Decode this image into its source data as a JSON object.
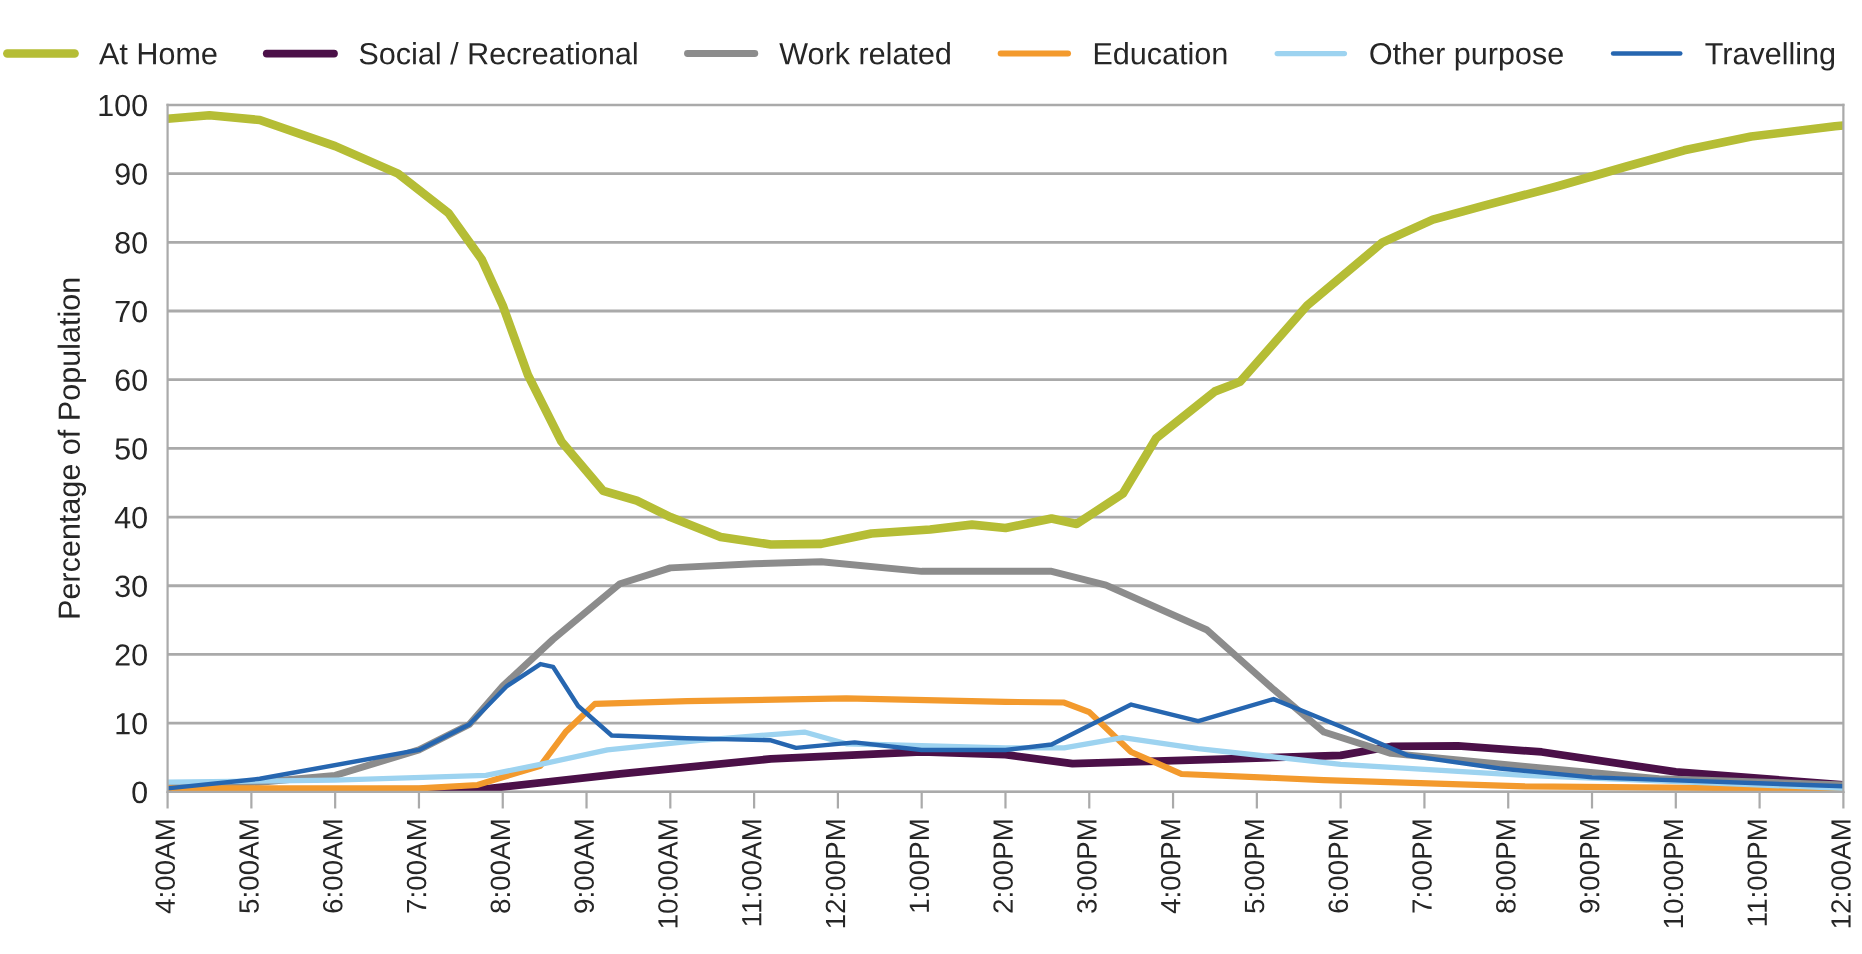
{
  "chart_data": {
    "type": "line",
    "ylabel": "Percentage of Population",
    "xlim": [
      4,
      24
    ],
    "xticks": [
      {
        "value": 4,
        "label": "4:00AM"
      },
      {
        "value": 5,
        "label": "5:00AM"
      },
      {
        "value": 6,
        "label": "6:00AM"
      },
      {
        "value": 7,
        "label": "7:00AM"
      },
      {
        "value": 8,
        "label": "8:00AM"
      },
      {
        "value": 9,
        "label": "9:00AM"
      },
      {
        "value": 10,
        "label": "10:00AM"
      },
      {
        "value": 11,
        "label": "11:00AM"
      },
      {
        "value": 12,
        "label": "12:00PM"
      },
      {
        "value": 13,
        "label": "1:00PM"
      },
      {
        "value": 14,
        "label": "2:00PM"
      },
      {
        "value": 15,
        "label": "3:00PM"
      },
      {
        "value": 16,
        "label": "4:00PM"
      },
      {
        "value": 17,
        "label": "5:00PM"
      },
      {
        "value": 18,
        "label": "6:00PM"
      },
      {
        "value": 19,
        "label": "7:00PM"
      },
      {
        "value": 20,
        "label": "8:00PM"
      },
      {
        "value": 21,
        "label": "9:00PM"
      },
      {
        "value": 22,
        "label": "10:00PM"
      },
      {
        "value": 23,
        "label": "11:00PM"
      },
      {
        "value": 24,
        "label": "12:00AM"
      }
    ],
    "ylim": [
      0,
      100
    ],
    "yticks": [
      0,
      10,
      20,
      30,
      40,
      50,
      60,
      70,
      80,
      90,
      100
    ],
    "grid": "y",
    "legend": "top",
    "marker": "none",
    "line_style": "solid",
    "series": [
      {
        "name": "At Home",
        "color": "#b5bd35",
        "x": [
          4,
          4.5,
          5.1,
          6,
          6.75,
          7.35,
          7.75,
          8,
          8.3,
          8.7,
          9.2,
          9.6,
          10,
          10.6,
          11.2,
          11.8,
          12.4,
          13.1,
          13.6,
          14,
          14.55,
          14.85,
          15.4,
          15.8,
          16.5,
          16.8,
          17.6,
          18.5,
          19.1,
          19.7,
          20.6,
          21.4,
          22.1,
          22.9,
          23.9,
          24
        ],
        "values": [
          98,
          98.5,
          97.8,
          94,
          90,
          84.3,
          77.5,
          70.8,
          60.7,
          51,
          43.8,
          42.4,
          40,
          37.1,
          36,
          36.1,
          37.6,
          38.2,
          38.9,
          38.4,
          39.8,
          39,
          43.4,
          51.5,
          58.3,
          59.7,
          70.8,
          80,
          83.3,
          85.3,
          88.2,
          91,
          93.4,
          95.4,
          96.9,
          97
        ]
      },
      {
        "name": "Social / Recreational",
        "color": "#4b1048",
        "x": [
          4,
          7.7,
          9.4,
          11.2,
          13,
          14,
          14.8,
          16.2,
          18,
          18.6,
          19.4,
          20.4,
          22,
          24
        ],
        "values": [
          0.2,
          0.3,
          2.6,
          4.8,
          5.8,
          5.4,
          4.1,
          4.6,
          5.3,
          6.6,
          6.7,
          5.8,
          2.9,
          1
        ]
      },
      {
        "name": "Work related",
        "color": "#8c8c8c",
        "x": [
          4,
          5.1,
          6,
          7,
          7.6,
          8,
          8.6,
          9.4,
          10,
          11,
          11.8,
          13,
          14,
          14.55,
          15.2,
          16.4,
          17.2,
          17.8,
          18.6,
          20.2,
          21.8,
          24
        ],
        "values": [
          0.8,
          1.4,
          2.4,
          6.1,
          9.8,
          15.4,
          22.2,
          30.3,
          32.6,
          33.2,
          33.5,
          32.1,
          32.1,
          32.1,
          30.1,
          23.6,
          14.9,
          8.7,
          5.6,
          3.7,
          1.9,
          1
        ]
      },
      {
        "name": "Education",
        "color": "#f39a2d",
        "x": [
          4,
          7,
          7.7,
          8.45,
          8.75,
          9.1,
          10.2,
          12.1,
          14,
          14.7,
          15,
          15.5,
          16.1,
          17.8,
          20.2,
          24
        ],
        "values": [
          0.5,
          0.5,
          1,
          3.8,
          8.7,
          12.8,
          13.2,
          13.6,
          13.1,
          13,
          11.6,
          5.8,
          2.6,
          1.7,
          0.8,
          0.4
        ]
      },
      {
        "name": "Other purpose",
        "color": "#9dd3f0",
        "x": [
          4,
          6,
          7.8,
          8.45,
          9.25,
          10.35,
          11.6,
          12.1,
          14,
          14.7,
          15.4,
          16.3,
          18,
          20.2,
          24
        ],
        "values": [
          1.4,
          1.7,
          2.4,
          4,
          6.1,
          7.5,
          8.7,
          7,
          6.4,
          6.4,
          7.9,
          6.3,
          4,
          2.4,
          0.5
        ]
      },
      {
        "name": "Travelling",
        "color": "#2666b0",
        "x": [
          4,
          5.1,
          7,
          7.6,
          8.05,
          8.45,
          8.6,
          8.9,
          9.3,
          10.2,
          11.2,
          11.5,
          12.2,
          13,
          14,
          14.55,
          15.5,
          16.3,
          17.2,
          18,
          18.8,
          19.9,
          21,
          24
        ],
        "values": [
          0.5,
          1.9,
          6.1,
          9.8,
          15.4,
          18.6,
          18.2,
          12.5,
          8.2,
          7.8,
          7.5,
          6.4,
          7.2,
          6.1,
          6.1,
          6.9,
          12.7,
          10.3,
          13.5,
          9.5,
          5.3,
          3.4,
          2.1,
          0.8
        ]
      }
    ]
  }
}
